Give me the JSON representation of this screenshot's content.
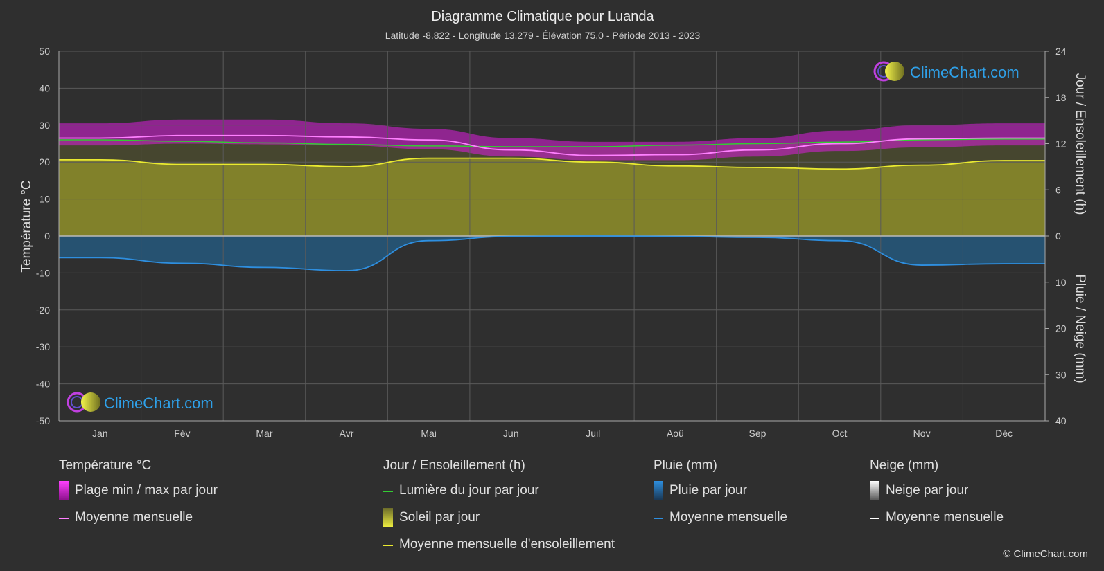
{
  "chart_data": {
    "type": "climate",
    "title": "Diagramme Climatique pour Luanda",
    "subtitle": "Latitude -8.822 - Longitude 13.279 - Élévation 75.0 - Période 2013 - 2023",
    "ylabel_left": "Température °C",
    "ylabel_right_top": "Jour / Ensoleillement (h)",
    "ylabel_right_bottom": "Pluie / Neige (mm)",
    "months": [
      "Jan",
      "Fév",
      "Mar",
      "Avr",
      "Mai",
      "Jun",
      "Juil",
      "Aoû",
      "Sep",
      "Oct",
      "Nov",
      "Déc"
    ],
    "temp_ticks": [
      "50",
      "40",
      "30",
      "20",
      "10",
      "0",
      "-10",
      "-20",
      "-30",
      "-40",
      "-50"
    ],
    "sun_ticks": [
      "24",
      "18",
      "12",
      "6",
      "0"
    ],
    "rain_ticks": [
      "10",
      "20",
      "30",
      "40"
    ],
    "temp_range": [
      -50,
      50
    ],
    "sun_range_hours": [
      0,
      24
    ],
    "rain_range_mm": [
      0,
      40
    ],
    "temp_min_daily_avg": [
      24.5,
      25.0,
      24.8,
      24.5,
      23.5,
      21.5,
      20.5,
      20.5,
      21.5,
      23.0,
      24.0,
      24.5
    ],
    "temp_max_daily_avg": [
      30.5,
      31.5,
      31.5,
      30.5,
      29.0,
      26.5,
      25.5,
      25.5,
      26.5,
      28.5,
      30.0,
      30.5
    ],
    "temp_monthly_mean": [
      26.5,
      27.2,
      27.2,
      26.8,
      26.0,
      23.3,
      21.8,
      22.0,
      23.3,
      25.0,
      26.3,
      26.5
    ],
    "daylight_hours": [
      12.5,
      12.3,
      12.1,
      11.9,
      11.7,
      11.6,
      11.6,
      11.8,
      12.0,
      12.2,
      12.5,
      12.6
    ],
    "sunshine_monthly_mean_hours": [
      9.9,
      9.3,
      9.3,
      9.0,
      10.1,
      10.1,
      9.6,
      9.1,
      8.9,
      8.7,
      9.2,
      9.8
    ],
    "rain_monthly_mean_mm": [
      4.7,
      5.9,
      6.8,
      7.5,
      1.0,
      0.1,
      0.0,
      0.1,
      0.3,
      1.0,
      6.3,
      6.0
    ],
    "snow_monthly_mean_mm": [
      0,
      0,
      0,
      0,
      0,
      0,
      0,
      0,
      0,
      0,
      0,
      0
    ],
    "colors": {
      "background": "#2f2f2f",
      "temp_band": "#d020d0",
      "temp_mean": "#ff80ff",
      "daylight": "#33cc33",
      "sunshine_fill": "#9e9e2a",
      "sunshine_mean": "#eaea30",
      "rain_fill": "#1f6fa8",
      "rain_mean": "#2e8fe0",
      "snow_mean": "#ffffff"
    }
  },
  "watermark": "ClimeChart.com",
  "copyright": "© ClimeChart.com",
  "legend": {
    "temp": {
      "title": "Température °C",
      "items": [
        "Plage min / max par jour",
        "Moyenne mensuelle"
      ]
    },
    "sun": {
      "title": "Jour / Ensoleillement (h)",
      "items": [
        "Lumière du jour par jour",
        "Soleil par jour",
        "Moyenne mensuelle d'ensoleillement"
      ]
    },
    "rain": {
      "title": "Pluie (mm)",
      "items": [
        "Pluie par jour",
        "Moyenne mensuelle"
      ]
    },
    "snow": {
      "title": "Neige (mm)",
      "items": [
        "Neige par jour",
        "Moyenne mensuelle"
      ]
    }
  }
}
